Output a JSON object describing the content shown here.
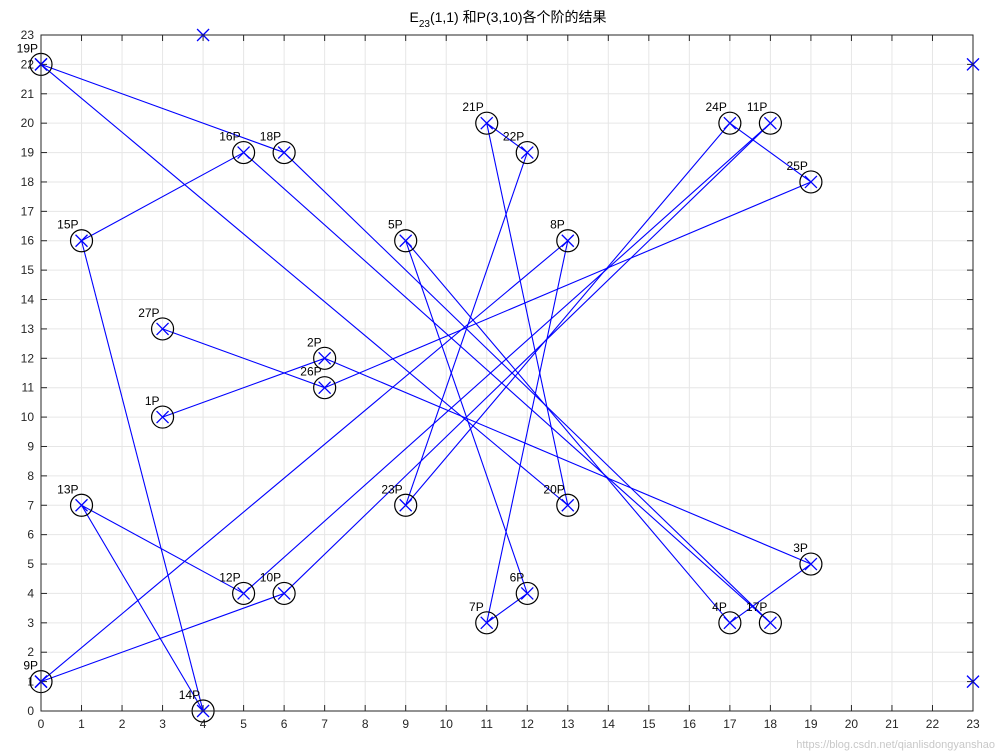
{
  "chart_data": {
    "type": "scatter",
    "title": {
      "pre": "E",
      "sub": "23",
      "post": "(1,1) 和P(3,10)各个阶的结果"
    },
    "xlabel": "",
    "ylabel": "",
    "xlim": [
      0,
      23
    ],
    "ylim": [
      0,
      23
    ],
    "xticks": [
      0,
      1,
      2,
      3,
      4,
      5,
      6,
      7,
      8,
      9,
      10,
      11,
      12,
      13,
      14,
      15,
      16,
      17,
      18,
      19,
      20,
      21,
      22,
      23
    ],
    "yticks": [
      0,
      1,
      2,
      3,
      4,
      5,
      6,
      7,
      8,
      9,
      10,
      11,
      12,
      13,
      14,
      15,
      16,
      17,
      18,
      19,
      20,
      21,
      22,
      23
    ],
    "grid": true,
    "colors": {
      "line": "#0000ff",
      "marker": "#0000ff",
      "circle": "#000000",
      "grid": "#e6e6e6",
      "axis": "#262626"
    },
    "curve_points": [
      {
        "x": 0,
        "y": 1
      },
      {
        "x": 0,
        "y": 22
      },
      {
        "x": 4,
        "y": 23
      },
      {
        "x": 23,
        "y": 1
      },
      {
        "x": 23,
        "y": 22
      }
    ],
    "multiples": [
      {
        "label": "1P",
        "x": 3,
        "y": 10
      },
      {
        "label": "2P",
        "x": 7,
        "y": 12
      },
      {
        "label": "3P",
        "x": 19,
        "y": 5
      },
      {
        "label": "4P",
        "x": 17,
        "y": 3
      },
      {
        "label": "5P",
        "x": 9,
        "y": 16
      },
      {
        "label": "6P",
        "x": 12,
        "y": 4
      },
      {
        "label": "7P",
        "x": 11,
        "y": 3
      },
      {
        "label": "8P",
        "x": 13,
        "y": 16
      },
      {
        "label": "9P",
        "x": 0,
        "y": 1
      },
      {
        "label": "10P",
        "x": 6,
        "y": 4
      },
      {
        "label": "11P",
        "x": 18,
        "y": 20
      },
      {
        "label": "12P",
        "x": 5,
        "y": 4
      },
      {
        "label": "13P",
        "x": 1,
        "y": 7
      },
      {
        "label": "14P",
        "x": 4,
        "y": 0
      },
      {
        "label": "15P",
        "x": 1,
        "y": 16
      },
      {
        "label": "16P",
        "x": 5,
        "y": 19
      },
      {
        "label": "17P",
        "x": 18,
        "y": 3
      },
      {
        "label": "18P",
        "x": 6,
        "y": 19
      },
      {
        "label": "19P",
        "x": 0,
        "y": 22
      },
      {
        "label": "20P",
        "x": 13,
        "y": 7
      },
      {
        "label": "21P",
        "x": 11,
        "y": 20
      },
      {
        "label": "22P",
        "x": 12,
        "y": 19
      },
      {
        "label": "23P",
        "x": 9,
        "y": 7
      },
      {
        "label": "24P",
        "x": 17,
        "y": 20
      },
      {
        "label": "25P",
        "x": 19,
        "y": 18
      },
      {
        "label": "26P",
        "x": 7,
        "y": 11
      },
      {
        "label": "27P",
        "x": 3,
        "y": 13
      }
    ]
  },
  "watermark": "https://blog.csdn.net/qianlisdongyanshao"
}
